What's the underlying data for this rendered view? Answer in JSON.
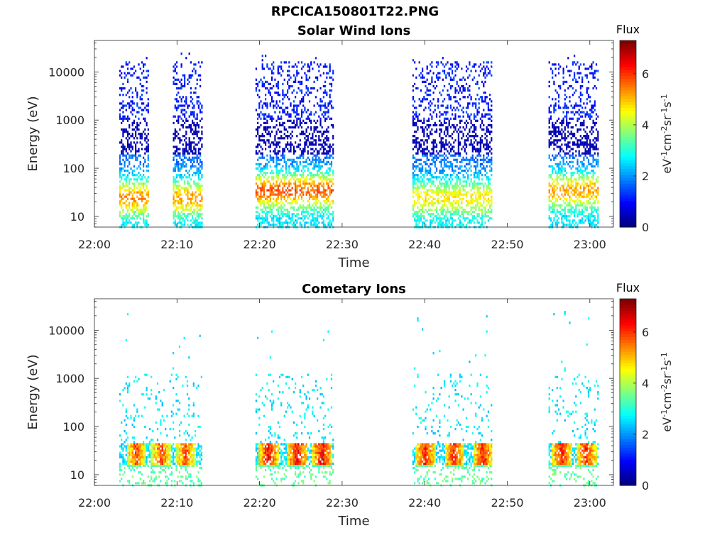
{
  "figure_title": "RPCICA150801T22.PNG",
  "colors": {
    "axis": "#262626",
    "background": "#ffffff",
    "colormap": "jet"
  },
  "chart_data": [
    {
      "type": "heatmap",
      "title": "Solar Wind Ions",
      "xlabel": "Time",
      "ylabel": "Energy (eV)",
      "y_scale": "log",
      "xlim": [
        "22:00",
        "23:03"
      ],
      "ylim": [
        6,
        45000
      ],
      "x_ticks": [
        "22:00",
        "22:10",
        "22:20",
        "22:30",
        "22:40",
        "22:50",
        "23:00"
      ],
      "y_ticks": [
        "10",
        "100",
        "1000",
        "10000"
      ],
      "grid": false,
      "colorbar": {
        "title": "Flux",
        "label": "eV-1cm-2sr-1s-1",
        "ticks": [
          "0",
          "2",
          "4",
          "6"
        ],
        "range": [
          0,
          7.3
        ]
      },
      "activity_intervals": [
        {
          "start": "22:03",
          "end": "22:06.5",
          "peak_energy_eV": 25,
          "peak_flux": 4.5
        },
        {
          "start": "22:09.5",
          "end": "22:13",
          "peak_energy_eV": 25,
          "peak_flux": 4.3
        },
        {
          "start": "22:19.5",
          "end": "22:29",
          "peak_energy_eV": 35,
          "peak_flux": 5.2
        },
        {
          "start": "22:38.5",
          "end": "22:48",
          "peak_energy_eV": 25,
          "peak_flux": 3.5
        },
        {
          "start": "22:55",
          "end": "23:01",
          "peak_energy_eV": 35,
          "peak_flux": 4.5
        }
      ]
    },
    {
      "type": "heatmap",
      "title": "Cometary Ions",
      "xlabel": "Time",
      "ylabel": "Energy (eV)",
      "y_scale": "log",
      "xlim": [
        "22:00",
        "23:03"
      ],
      "ylim": [
        6,
        45000
      ],
      "x_ticks": [
        "22:00",
        "22:10",
        "22:20",
        "22:30",
        "22:40",
        "22:50",
        "23:00"
      ],
      "y_ticks": [
        "10",
        "100",
        "1000",
        "10000"
      ],
      "grid": false,
      "colorbar": {
        "title": "Flux",
        "label": "eV-1cm-2sr-1s-1",
        "ticks": [
          "0",
          "2",
          "4",
          "6"
        ],
        "range": [
          0,
          7.3
        ]
      },
      "activity_intervals": [
        {
          "start": "22:03",
          "end": "22:13",
          "peak_energy_eV": 25,
          "peak_flux": 6.5,
          "bursts": [
            "22:05",
            "22:08",
            "22:11"
          ]
        },
        {
          "start": "22:19.5",
          "end": "22:29",
          "peak_energy_eV": 25,
          "peak_flux": 7.0,
          "bursts": [
            "22:21",
            "22:24.5",
            "22:27.5"
          ]
        },
        {
          "start": "22:38.5",
          "end": "22:48",
          "peak_energy_eV": 25,
          "peak_flux": 6.8,
          "bursts": [
            "22:40",
            "22:43.5",
            "22:47"
          ]
        },
        {
          "start": "22:55",
          "end": "23:01",
          "peak_energy_eV": 25,
          "peak_flux": 6.8,
          "bursts": [
            "22:56.5",
            "22:59.5"
          ]
        }
      ]
    }
  ]
}
